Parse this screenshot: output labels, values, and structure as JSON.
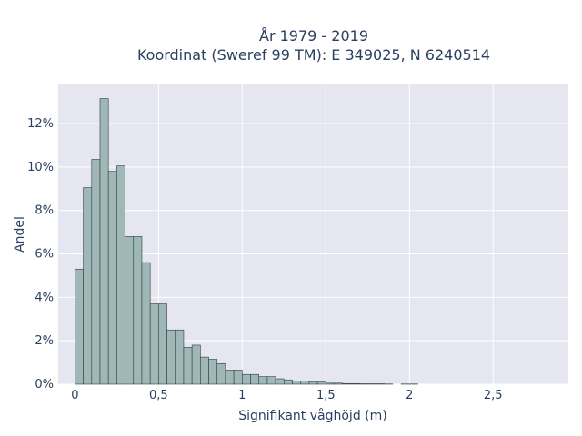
{
  "chart_data": {
    "type": "bar",
    "title_line1": "År 1979 - 2019",
    "title_line2": "Koordinat (Sweref 99 TM): E 349025, N 6240514",
    "xlabel": "Signifikant våghöjd (m)",
    "ylabel": "Andel",
    "xlim": [
      -0.1,
      2.95
    ],
    "ylim": [
      0,
      13.8
    ],
    "bin_width": 0.05,
    "bin_start": 0.0,
    "x_ticks": [
      {
        "value": 0,
        "label": "0"
      },
      {
        "value": 0.5,
        "label": "0,5"
      },
      {
        "value": 1,
        "label": "1"
      },
      {
        "value": 1.5,
        "label": "1,5"
      },
      {
        "value": 2,
        "label": "2"
      },
      {
        "value": 2.5,
        "label": "2,5"
      }
    ],
    "y_ticks": [
      {
        "value": 0,
        "label": "0%"
      },
      {
        "value": 2,
        "label": "2%"
      },
      {
        "value": 4,
        "label": "4%"
      },
      {
        "value": 6,
        "label": "6%"
      },
      {
        "value": 8,
        "label": "8%"
      },
      {
        "value": 10,
        "label": "10%"
      },
      {
        "value": 12,
        "label": "12%"
      }
    ],
    "values": [
      5.3,
      9.05,
      10.35,
      13.15,
      9.8,
      10.05,
      6.8,
      6.8,
      5.6,
      3.7,
      3.7,
      2.5,
      2.5,
      1.7,
      1.8,
      1.25,
      1.15,
      0.95,
      0.65,
      0.65,
      0.45,
      0.45,
      0.35,
      0.35,
      0.25,
      0.2,
      0.15,
      0.15,
      0.1,
      0.1,
      0.05,
      0.05,
      0.03,
      0.03,
      0.02,
      0.02,
      0.02,
      0.01,
      0.0,
      0.01,
      0.01,
      0.0,
      0.0,
      0.0,
      0.0,
      0.0,
      0.0,
      0.0,
      0.0,
      0.0
    ],
    "grid": true,
    "colors": {
      "bar_fill": "#9fb7b7",
      "bar_edge": "#2f3f3f",
      "plot_bg": "#e5e6f0",
      "text": "#2a3f5f"
    }
  }
}
